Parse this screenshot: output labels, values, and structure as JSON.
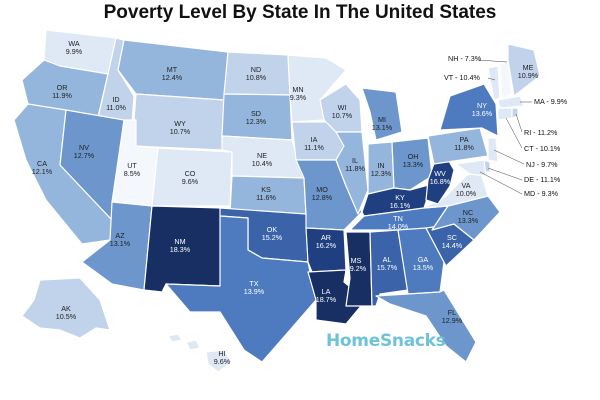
{
  "title": "Poverty Level By State In The United States",
  "brand": {
    "name": "HomeSnacks",
    "color": "#6fc3d8"
  },
  "colors": {
    "c1": "#f4f7fc",
    "c2": "#dfe8f5",
    "c3": "#c0d3ea",
    "c4": "#95b6dc",
    "c5": "#6c96cc",
    "c6": "#4e7bc0",
    "c7": "#3a63aa",
    "c8": "#1f3f80",
    "c9": "#182f63"
  },
  "states": [
    {
      "code": "WA",
      "value": "9.9%"
    },
    {
      "code": "OR",
      "value": "11.9%"
    },
    {
      "code": "CA",
      "value": "12.1%"
    },
    {
      "code": "ID",
      "value": "11.0%"
    },
    {
      "code": "NV",
      "value": "12.7%"
    },
    {
      "code": "MT",
      "value": "12.4%"
    },
    {
      "code": "WY",
      "value": "10.7%"
    },
    {
      "code": "UT",
      "value": "8.5%"
    },
    {
      "code": "AZ",
      "value": "13.1%"
    },
    {
      "code": "CO",
      "value": "9.6%"
    },
    {
      "code": "NM",
      "value": "18.3%"
    },
    {
      "code": "ND",
      "value": "10.8%"
    },
    {
      "code": "SD",
      "value": "12.3%"
    },
    {
      "code": "NE",
      "value": "10.4%"
    },
    {
      "code": "KS",
      "value": "11.6%"
    },
    {
      "code": "OK",
      "value": "15.2%"
    },
    {
      "code": "TX",
      "value": "13.9%"
    },
    {
      "code": "MN",
      "value": "9.3%"
    },
    {
      "code": "IA",
      "value": "11.1%"
    },
    {
      "code": "MO",
      "value": "12.8%"
    },
    {
      "code": "AR",
      "value": "16.2%"
    },
    {
      "code": "LA",
      "value": "18.7%"
    },
    {
      "code": "WI",
      "value": "10.7%"
    },
    {
      "code": "IL",
      "value": "11.8%"
    },
    {
      "code": "MI",
      "value": "13.1%"
    },
    {
      "code": "IN",
      "value": "12.3%"
    },
    {
      "code": "OH",
      "value": "13.3%"
    },
    {
      "code": "KY",
      "value": "16.1%"
    },
    {
      "code": "TN",
      "value": "14.0%"
    },
    {
      "code": "MS",
      "value": "19.2%"
    },
    {
      "code": "AL",
      "value": "15.7%"
    },
    {
      "code": "GA",
      "value": "13.5%"
    },
    {
      "code": "FL",
      "value": "12.9%"
    },
    {
      "code": "SC",
      "value": "14.4%"
    },
    {
      "code": "NC",
      "value": "13.3%"
    },
    {
      "code": "VA",
      "value": "10.0%"
    },
    {
      "code": "WV",
      "value": "16.8%"
    },
    {
      "code": "PA",
      "value": "11.8%"
    },
    {
      "code": "NY",
      "value": "13.6%"
    },
    {
      "code": "ME",
      "value": "10.9%"
    },
    {
      "code": "AK",
      "value": "10.5%"
    },
    {
      "code": "HI",
      "value": "9.6%"
    }
  ],
  "callouts": [
    {
      "code": "NH",
      "value": "7.3%"
    },
    {
      "code": "VT",
      "value": "10.4%"
    },
    {
      "code": "MA",
      "value": "9.9%"
    },
    {
      "code": "RI",
      "value": "11.2%"
    },
    {
      "code": "CT",
      "value": "10.1%"
    },
    {
      "code": "NJ",
      "value": "9.7%"
    },
    {
      "code": "DE",
      "value": "11.1%"
    },
    {
      "code": "MD",
      "value": "9.3%"
    }
  ]
}
